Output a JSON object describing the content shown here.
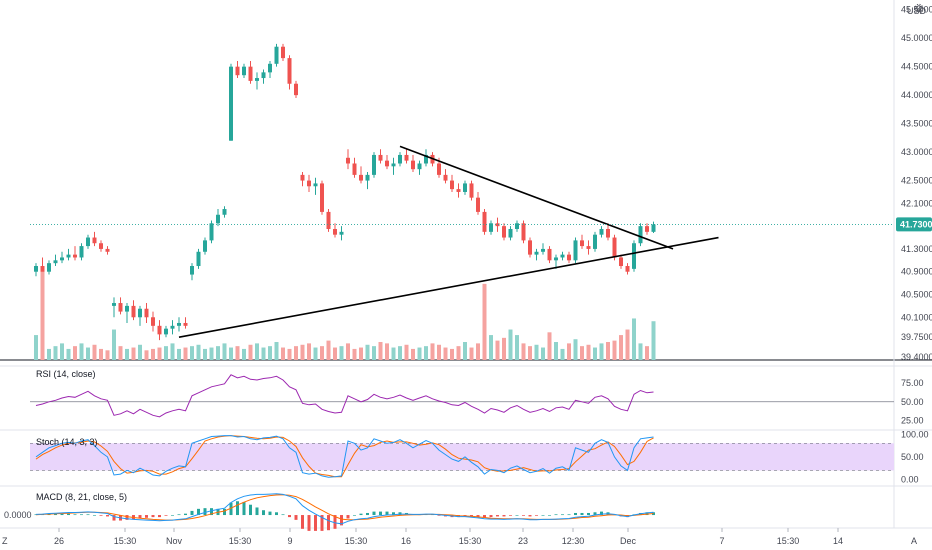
{
  "chart_data": {
    "type": "candlestick",
    "currency": "USD",
    "price_axis": {
      "ticks": [
        "45.5000",
        "45.0000",
        "44.5000",
        "44.0000",
        "43.5000",
        "43.0000",
        "42.5000",
        "42.1000",
        "41.3000",
        "40.9000",
        "40.5000",
        "40.1000",
        "39.7500",
        "39.4000"
      ],
      "current": 41.73,
      "current_label": "41.7300"
    },
    "time_axis": {
      "ticks": [
        "26",
        "15:30",
        "Nov",
        "15:30",
        "9",
        "15:30",
        "16",
        "15:30",
        "23",
        "12:30",
        "Dec",
        "7",
        "15:30",
        "14"
      ]
    },
    "candles": [
      [
        40.9,
        41.05,
        40.82,
        41.0
      ],
      [
        41.0,
        41.15,
        40.95,
        40.9
      ],
      [
        40.9,
        41.1,
        40.85,
        41.05
      ],
      [
        41.05,
        41.2,
        41.0,
        41.1
      ],
      [
        41.1,
        41.25,
        41.05,
        41.15
      ],
      [
        41.15,
        41.3,
        41.1,
        41.2
      ],
      [
        41.2,
        41.35,
        41.1,
        41.15
      ],
      [
        41.15,
        41.4,
        41.1,
        41.35
      ],
      [
        41.35,
        41.55,
        41.3,
        41.5
      ],
      [
        41.5,
        41.6,
        41.35,
        41.4
      ],
      [
        41.4,
        41.45,
        41.25,
        41.3
      ],
      [
        41.3,
        41.35,
        41.2,
        41.25
      ],
      [
        40.3,
        40.45,
        40.1,
        40.35
      ],
      [
        40.35,
        40.45,
        40.15,
        40.2
      ],
      [
        40.2,
        40.35,
        40.0,
        40.3
      ],
      [
        40.3,
        40.4,
        40.05,
        40.1
      ],
      [
        40.1,
        40.3,
        39.95,
        40.25
      ],
      [
        40.25,
        40.35,
        40.0,
        40.1
      ],
      [
        40.1,
        40.2,
        39.85,
        39.95
      ],
      [
        39.95,
        40.05,
        39.7,
        39.8
      ],
      [
        39.8,
        39.95,
        39.75,
        39.9
      ],
      [
        39.9,
        40.05,
        39.8,
        39.95
      ],
      [
        39.95,
        40.1,
        39.85,
        40.0
      ],
      [
        40.0,
        40.1,
        39.9,
        39.95
      ],
      [
        40.85,
        41.05,
        40.75,
        41.0
      ],
      [
        41.0,
        41.3,
        40.95,
        41.25
      ],
      [
        41.25,
        41.5,
        41.2,
        41.45
      ],
      [
        41.45,
        41.8,
        41.4,
        41.75
      ],
      [
        41.75,
        42.0,
        41.7,
        41.9
      ],
      [
        41.9,
        42.05,
        41.85,
        42.0
      ],
      [
        43.2,
        44.55,
        43.2,
        44.5
      ],
      [
        44.5,
        44.6,
        44.3,
        44.35
      ],
      [
        44.35,
        44.55,
        44.3,
        44.5
      ],
      [
        44.5,
        44.6,
        44.2,
        44.25
      ],
      [
        44.25,
        44.4,
        44.1,
        44.3
      ],
      [
        44.3,
        44.45,
        44.2,
        44.4
      ],
      [
        44.4,
        44.6,
        44.3,
        44.55
      ],
      [
        44.55,
        44.9,
        44.5,
        44.85
      ],
      [
        44.85,
        44.9,
        44.6,
        44.65
      ],
      [
        44.65,
        44.7,
        44.1,
        44.2
      ],
      [
        44.2,
        44.25,
        43.95,
        44.0
      ],
      [
        42.6,
        42.65,
        42.4,
        42.5
      ],
      [
        42.5,
        42.6,
        42.3,
        42.4
      ],
      [
        42.4,
        42.55,
        42.25,
        42.45
      ],
      [
        42.45,
        42.5,
        41.9,
        41.95
      ],
      [
        41.95,
        42.0,
        41.6,
        41.65
      ],
      [
        41.65,
        41.75,
        41.5,
        41.55
      ],
      [
        41.55,
        41.7,
        41.45,
        41.6
      ],
      [
        42.9,
        43.05,
        42.7,
        42.8
      ],
      [
        42.8,
        42.9,
        42.55,
        42.6
      ],
      [
        42.6,
        42.75,
        42.45,
        42.5
      ],
      [
        42.5,
        42.65,
        42.35,
        42.6
      ],
      [
        42.6,
        43.0,
        42.55,
        42.95
      ],
      [
        42.95,
        43.05,
        42.8,
        42.85
      ],
      [
        42.85,
        42.95,
        42.7,
        42.75
      ],
      [
        42.75,
        42.9,
        42.6,
        42.8
      ],
      [
        42.8,
        43.0,
        42.75,
        42.95
      ],
      [
        42.95,
        43.05,
        42.8,
        42.85
      ],
      [
        42.85,
        42.95,
        42.65,
        42.7
      ],
      [
        42.7,
        42.85,
        42.6,
        42.8
      ],
      [
        42.8,
        43.05,
        42.75,
        42.95
      ],
      [
        42.95,
        43.0,
        42.75,
        42.8
      ],
      [
        42.8,
        42.9,
        42.55,
        42.6
      ],
      [
        42.6,
        42.7,
        42.45,
        42.5
      ],
      [
        42.5,
        42.6,
        42.3,
        42.35
      ],
      [
        42.35,
        42.45,
        42.2,
        42.3
      ],
      [
        42.3,
        42.5,
        42.25,
        42.45
      ],
      [
        42.45,
        42.5,
        42.15,
        42.2
      ],
      [
        42.2,
        42.3,
        41.9,
        41.95
      ],
      [
        41.95,
        42.0,
        41.55,
        41.6
      ],
      [
        41.6,
        41.8,
        41.55,
        41.75
      ],
      [
        41.75,
        41.85,
        41.6,
        41.7
      ],
      [
        41.7,
        41.75,
        41.45,
        41.5
      ],
      [
        41.5,
        41.7,
        41.45,
        41.65
      ],
      [
        41.65,
        41.8,
        41.6,
        41.75
      ],
      [
        41.75,
        41.8,
        41.4,
        41.45
      ],
      [
        41.45,
        41.5,
        41.15,
        41.2
      ],
      [
        41.2,
        41.3,
        41.1,
        41.25
      ],
      [
        41.25,
        41.4,
        41.2,
        41.3
      ],
      [
        41.3,
        41.35,
        41.05,
        41.1
      ],
      [
        41.1,
        41.2,
        40.95,
        41.15
      ],
      [
        41.15,
        41.25,
        41.1,
        41.2
      ],
      [
        41.2,
        41.25,
        41.05,
        41.1
      ],
      [
        41.1,
        41.5,
        41.05,
        41.45
      ],
      [
        41.45,
        41.55,
        41.3,
        41.35
      ],
      [
        41.35,
        41.45,
        41.2,
        41.3
      ],
      [
        41.3,
        41.6,
        41.25,
        41.55
      ],
      [
        41.55,
        41.7,
        41.5,
        41.65
      ],
      [
        41.65,
        41.75,
        41.45,
        41.5
      ],
      [
        41.5,
        41.55,
        41.1,
        41.15
      ],
      [
        41.15,
        41.2,
        40.95,
        41.0
      ],
      [
        41.0,
        41.05,
        40.85,
        40.9
      ],
      [
        40.95,
        41.45,
        40.9,
        41.4
      ],
      [
        41.4,
        41.75,
        41.35,
        41.7
      ],
      [
        41.7,
        41.75,
        41.55,
        41.6
      ],
      [
        41.6,
        41.78,
        41.58,
        41.73
      ]
    ],
    "volume": [
      18,
      65,
      8,
      10,
      12,
      8,
      10,
      12,
      9,
      11,
      8,
      7,
      22,
      10,
      8,
      9,
      11,
      7,
      8,
      9,
      10,
      12,
      8,
      9,
      10,
      11,
      8,
      9,
      10,
      12,
      9,
      10,
      8,
      11,
      12,
      9,
      10,
      13,
      9,
      8,
      10,
      11,
      12,
      9,
      10,
      14,
      9,
      10,
      12,
      8,
      9,
      11,
      10,
      13,
      12,
      9,
      10,
      11,
      8,
      9,
      10,
      12,
      11,
      9,
      8,
      10,
      13,
      9,
      12,
      55,
      18,
      14,
      16,
      22,
      18,
      12,
      10,
      11,
      9,
      20,
      13,
      8,
      12,
      15,
      10,
      11,
      9,
      12,
      13,
      14,
      18,
      22,
      30,
      12,
      10,
      28
    ],
    "indicators": {
      "rsi": {
        "label": "RSI (14, close)",
        "ticks": [
          "75.00",
          "50.00",
          "25.00"
        ],
        "values": [
          45,
          47,
          50,
          52,
          55,
          57,
          56,
          60,
          64,
          58,
          54,
          52,
          32,
          34,
          38,
          34,
          40,
          36,
          32,
          30,
          35,
          38,
          40,
          38,
          58,
          62,
          66,
          70,
          72,
          74,
          86,
          82,
          84,
          80,
          79,
          81,
          82,
          84,
          79,
          70,
          66,
          48,
          46,
          47,
          40,
          37,
          35,
          36,
          58,
          54,
          50,
          53,
          60,
          56,
          54,
          56,
          59,
          55,
          52,
          55,
          58,
          54,
          51,
          49,
          46,
          45,
          49,
          44,
          40,
          35,
          41,
          39,
          36,
          42,
          45,
          40,
          36,
          38,
          41,
          37,
          42,
          43,
          40,
          52,
          50,
          48,
          56,
          58,
          54,
          44,
          40,
          38,
          60,
          65,
          62,
          63
        ],
        "ylim": [
          15,
          95
        ]
      },
      "stoch": {
        "label": "Stoch (14, 3, 3)",
        "ticks": [
          "100.00",
          "50.00",
          "0.00"
        ],
        "k": [
          50,
          60,
          70,
          75,
          80,
          82,
          80,
          85,
          88,
          75,
          60,
          50,
          10,
          12,
          20,
          15,
          25,
          18,
          10,
          8,
          18,
          25,
          30,
          28,
          80,
          85,
          90,
          95,
          96,
          97,
          97,
          94,
          95,
          90,
          88,
          92,
          93,
          96,
          90,
          70,
          60,
          15,
          12,
          14,
          8,
          5,
          6,
          8,
          85,
          80,
          65,
          70,
          90,
          85,
          80,
          82,
          88,
          80,
          70,
          78,
          86,
          80,
          65,
          55,
          45,
          40,
          50,
          38,
          28,
          12,
          22,
          20,
          15,
          25,
          30,
          22,
          15,
          18,
          24,
          14,
          25,
          28,
          20,
          70,
          65,
          60,
          80,
          88,
          82,
          50,
          30,
          20,
          70,
          90,
          92,
          94
        ],
        "d": [
          45,
          55,
          62,
          70,
          76,
          80,
          81,
          82,
          85,
          83,
          74,
          62,
          40,
          24,
          14,
          16,
          19,
          20,
          18,
          12,
          12,
          17,
          24,
          28,
          46,
          65,
          85,
          90,
          94,
          96,
          97,
          96,
          95,
          93,
          91,
          90,
          91,
          94,
          93,
          85,
          73,
          48,
          29,
          14,
          11,
          9,
          6,
          6,
          33,
          58,
          77,
          72,
          75,
          82,
          85,
          82,
          83,
          83,
          80,
          76,
          78,
          81,
          77,
          67,
          55,
          47,
          45,
          43,
          39,
          26,
          21,
          18,
          19,
          20,
          23,
          26,
          22,
          18,
          19,
          19,
          21,
          22,
          24,
          39,
          52,
          65,
          68,
          76,
          83,
          73,
          54,
          33,
          40,
          60,
          84,
          92
        ],
        "ylim": [
          -10,
          105
        ]
      },
      "macd": {
        "label": "MACD (8, 21, close, 5)",
        "tick": "0.0000",
        "macd": [
          0.02,
          0.03,
          0.05,
          0.06,
          0.07,
          0.08,
          0.08,
          0.09,
          0.1,
          0.09,
          0.07,
          0.05,
          -0.05,
          -0.09,
          -0.12,
          -0.14,
          -0.15,
          -0.16,
          -0.17,
          -0.18,
          -0.17,
          -0.16,
          -0.14,
          -0.12,
          -0.05,
          0.02,
          0.08,
          0.14,
          0.18,
          0.22,
          0.4,
          0.52,
          0.6,
          0.64,
          0.66,
          0.66,
          0.67,
          0.68,
          0.66,
          0.6,
          0.52,
          0.3,
          0.15,
          0.03,
          -0.08,
          -0.18,
          -0.25,
          -0.28,
          -0.2,
          -0.15,
          -0.12,
          -0.1,
          -0.05,
          -0.02,
          0.0,
          0.01,
          0.03,
          0.03,
          0.02,
          0.02,
          0.03,
          0.03,
          0.01,
          -0.01,
          -0.03,
          -0.05,
          -0.05,
          -0.07,
          -0.09,
          -0.12,
          -0.13,
          -0.13,
          -0.14,
          -0.13,
          -0.12,
          -0.13,
          -0.15,
          -0.15,
          -0.14,
          -0.14,
          -0.13,
          -0.12,
          -0.11,
          -0.07,
          -0.05,
          -0.04,
          0.0,
          0.03,
          0.04,
          0.02,
          -0.02,
          -0.05,
          0.0,
          0.04,
          0.07,
          0.09
        ],
        "signal": [
          0.01,
          0.02,
          0.03,
          0.04,
          0.05,
          0.06,
          0.07,
          0.08,
          0.09,
          0.09,
          0.08,
          0.07,
          0.03,
          -0.01,
          -0.05,
          -0.08,
          -0.1,
          -0.12,
          -0.14,
          -0.15,
          -0.16,
          -0.16,
          -0.15,
          -0.14,
          -0.11,
          -0.07,
          -0.02,
          0.04,
          0.09,
          0.13,
          0.22,
          0.32,
          0.41,
          0.49,
          0.55,
          0.59,
          0.62,
          0.64,
          0.65,
          0.63,
          0.59,
          0.5,
          0.38,
          0.26,
          0.15,
          0.04,
          -0.05,
          -0.13,
          -0.15,
          -0.15,
          -0.14,
          -0.13,
          -0.1,
          -0.07,
          -0.05,
          -0.03,
          -0.01,
          0.0,
          0.01,
          0.01,
          0.02,
          0.02,
          0.02,
          0.01,
          0.0,
          -0.02,
          -0.03,
          -0.04,
          -0.06,
          -0.08,
          -0.1,
          -0.11,
          -0.12,
          -0.12,
          -0.12,
          -0.12,
          -0.13,
          -0.14,
          -0.14,
          -0.14,
          -0.14,
          -0.13,
          -0.12,
          -0.1,
          -0.08,
          -0.07,
          -0.04,
          -0.02,
          0.0,
          0.01,
          0.0,
          -0.02,
          -0.01,
          0.01,
          0.03,
          0.05
        ],
        "ylim": [
          -0.35,
          0.8
        ]
      }
    },
    "drawings": {
      "trendline_upper": {
        "from": [
          56,
          43.1
        ],
        "to": [
          98,
          41.3
        ]
      },
      "trendline_lower": {
        "from": [
          22,
          39.75
        ],
        "to": [
          105,
          41.5
        ]
      }
    }
  },
  "controls": {
    "zoom_label": "Z",
    "auto_label": "A",
    "settings_icon": "gear-icon"
  },
  "colors": {
    "up": "#26a69a",
    "down": "#ef5350",
    "up_vol": "#8fd3cb",
    "down_vol": "#f5a3a0",
    "rsi": "#9c27b0",
    "stoch_k": "#2196f3",
    "stoch_d": "#ff6d00",
    "stoch_band": "#e9d5fb",
    "current_price": "#26a69a",
    "text": "#434651"
  }
}
